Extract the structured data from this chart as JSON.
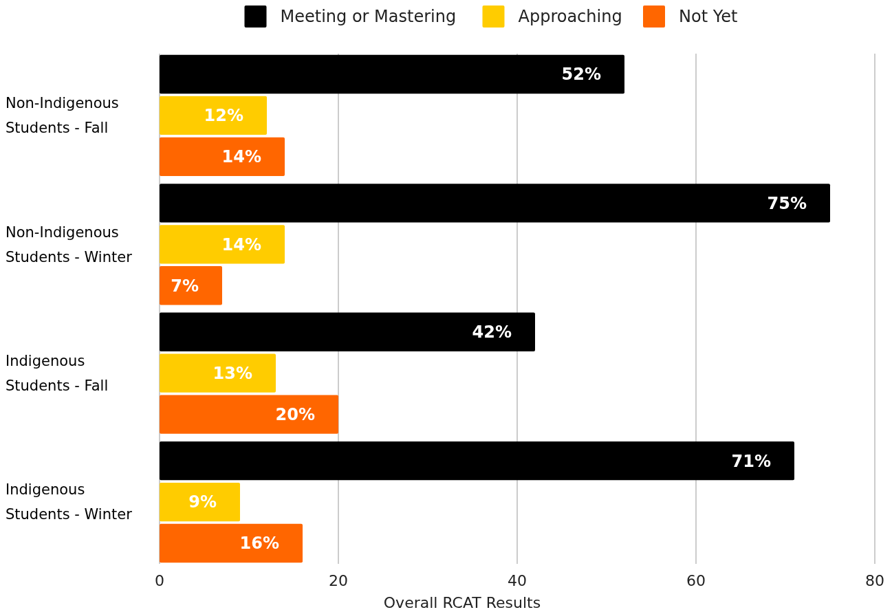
{
  "chart_data": {
    "type": "bar",
    "orientation": "horizontal",
    "xlabel": "Overall RCAT Results",
    "categories": [
      "Non-Indigenous Students - Fall",
      "Non-Indigenous Students - Winter",
      "Indigenous Students - Fall",
      "Indigenous Students - Winter"
    ],
    "series": [
      {
        "name": "Meeting or Mastering",
        "color": "#000000",
        "values": [
          52,
          75,
          42,
          71
        ],
        "value_labels": [
          "52%",
          "75%",
          "42%",
          "71%"
        ]
      },
      {
        "name": "Approaching",
        "color": "#ffcc00",
        "values": [
          12,
          14,
          13,
          9
        ],
        "value_labels": [
          "12%",
          "14%",
          "13%",
          "9%"
        ]
      },
      {
        "name": "Not Yet",
        "color": "#ff6600",
        "values": [
          14,
          7,
          20,
          16
        ],
        "value_labels": [
          "14%",
          "7%",
          "20%",
          "16%"
        ]
      }
    ],
    "xlim": [
      0,
      80
    ],
    "xticks": [
      0,
      20,
      40,
      60,
      80
    ],
    "grid": "x",
    "legend": "top"
  }
}
